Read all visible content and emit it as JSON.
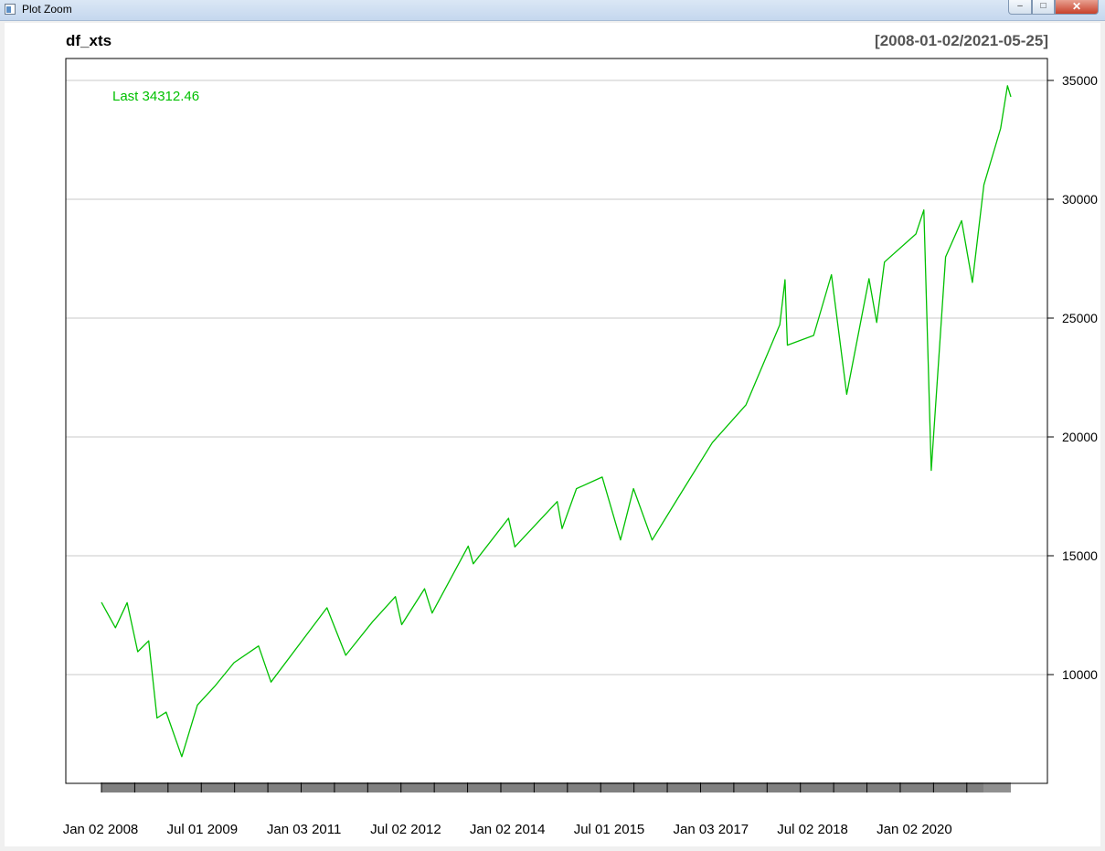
{
  "window": {
    "title": "Plot Zoom",
    "buttons": {
      "minimize": "–",
      "maximize": "□",
      "close": "✕"
    }
  },
  "chart_data": {
    "type": "line",
    "title": "df_xts",
    "date_range": "[2008-01-02/2021-05-25]",
    "last_label": "Last 34312.46",
    "line_color": "#00c000",
    "xlabel": "",
    "ylabel": "",
    "x_ticks": [
      "Jan 02 2008",
      "Jul 01 2009",
      "Jan 03 2011",
      "Jul 02 2012",
      "Jan 02 2014",
      "Jul 01 2015",
      "Jan 03 2017",
      "Jul 02 2018",
      "Jan 02 2020"
    ],
    "y_ticks": [
      "35000",
      "30000",
      "25000",
      "20000",
      "15000",
      "10000"
    ],
    "ylim": [
      6500,
      35000
    ],
    "grid": true,
    "series": [
      {
        "x": [
          "2008-01-02",
          "2008-03-17",
          "2008-05-19",
          "2008-07-15",
          "2008-09-12",
          "2008-10-27",
          "2008-12-15",
          "2009-03-09",
          "2009-06-01",
          "2009-09-01",
          "2009-12-15",
          "2010-04-26",
          "2010-07-02",
          "2010-12-31",
          "2011-04-29",
          "2011-08-08",
          "2011-12-30",
          "2012-05-01",
          "2012-06-04",
          "2012-10-05",
          "2012-11-15",
          "2013-05-28",
          "2013-06-24",
          "2013-12-31",
          "2014-02-03",
          "2014-09-19",
          "2014-10-15",
          "2014-12-31",
          "2015-05-19",
          "2015-08-25",
          "2015-11-03",
          "2016-02-11",
          "2016-06-27",
          "2016-12-31",
          "2017-06-30",
          "2017-12-29",
          "2018-01-26",
          "2018-02-08",
          "2018-06-29",
          "2018-10-03",
          "2018-12-24",
          "2019-04-23",
          "2019-06-03",
          "2019-07-15",
          "2019-12-31",
          "2020-02-12",
          "2020-03-23",
          "2020-06-08",
          "2020-09-02",
          "2020-10-30",
          "2020-12-31",
          "2021-03-31",
          "2021-05-07",
          "2021-05-25"
        ],
        "y": [
          13044,
          11970,
          13028,
          10963,
          11421,
          8175,
          8419,
          6547,
          8721,
          9496,
          10501,
          11205,
          9686,
          11578,
          12810,
          10810,
          12218,
          13279,
          12101,
          13610,
          12588,
          15409,
          14660,
          16577,
          15372,
          17279,
          16141,
          17823,
          18312,
          15666,
          17828,
          15660,
          17400,
          19763,
          21350,
          24719,
          26616,
          23860,
          24271,
          26828,
          21792,
          26656,
          24815,
          27359,
          28538,
          29551,
          18591,
          27572,
          29100,
          26501,
          30606,
          32982,
          34777,
          34312
        ]
      }
    ]
  }
}
